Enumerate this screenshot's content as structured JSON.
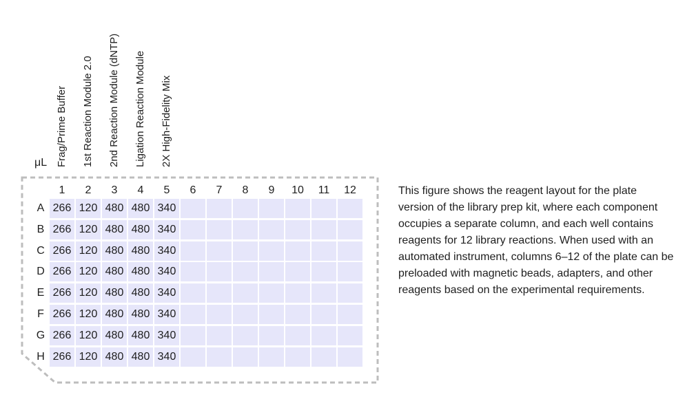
{
  "unit": "μL",
  "components": [
    "Frag/Prime Buffer",
    "1st Reaction Module 2.0",
    "2nd Reaction Module (dNTP)",
    "Ligation Reaction Module",
    "2X High-Fidelity Mix"
  ],
  "columns": [
    "1",
    "2",
    "3",
    "4",
    "5",
    "6",
    "7",
    "8",
    "9",
    "10",
    "11",
    "12"
  ],
  "rows": [
    {
      "letter": "A",
      "values": [
        "266",
        "120",
        "480",
        "480",
        "340"
      ]
    },
    {
      "letter": "B",
      "values": [
        "266",
        "120",
        "480",
        "480",
        "340"
      ]
    },
    {
      "letter": "C",
      "values": [
        "266",
        "120",
        "480",
        "480",
        "340"
      ]
    },
    {
      "letter": "D",
      "values": [
        "266",
        "120",
        "480",
        "480",
        "340"
      ]
    },
    {
      "letter": "E",
      "values": [
        "266",
        "120",
        "480",
        "480",
        "340"
      ]
    },
    {
      "letter": "F",
      "values": [
        "266",
        "120",
        "480",
        "480",
        "340"
      ]
    },
    {
      "letter": "G",
      "values": [
        "266",
        "120",
        "480",
        "480",
        "340"
      ]
    },
    {
      "letter": "H",
      "values": [
        "266",
        "120",
        "480",
        "480",
        "340"
      ]
    }
  ],
  "description": "This figure shows the reagent layout for the plate version of the library prep kit, where each component occupies a separate column, and each well contains reagents for 12 library reactions. When used with an automated instrument, columns 6–12 of the plate can be preloaded with magnetic beads, adapters, and other reagents based on the experimental requirements.",
  "colors": {
    "well_fill": "#e6e6fa",
    "outline": "#bdbdbd",
    "text": "#1e1e1e"
  }
}
